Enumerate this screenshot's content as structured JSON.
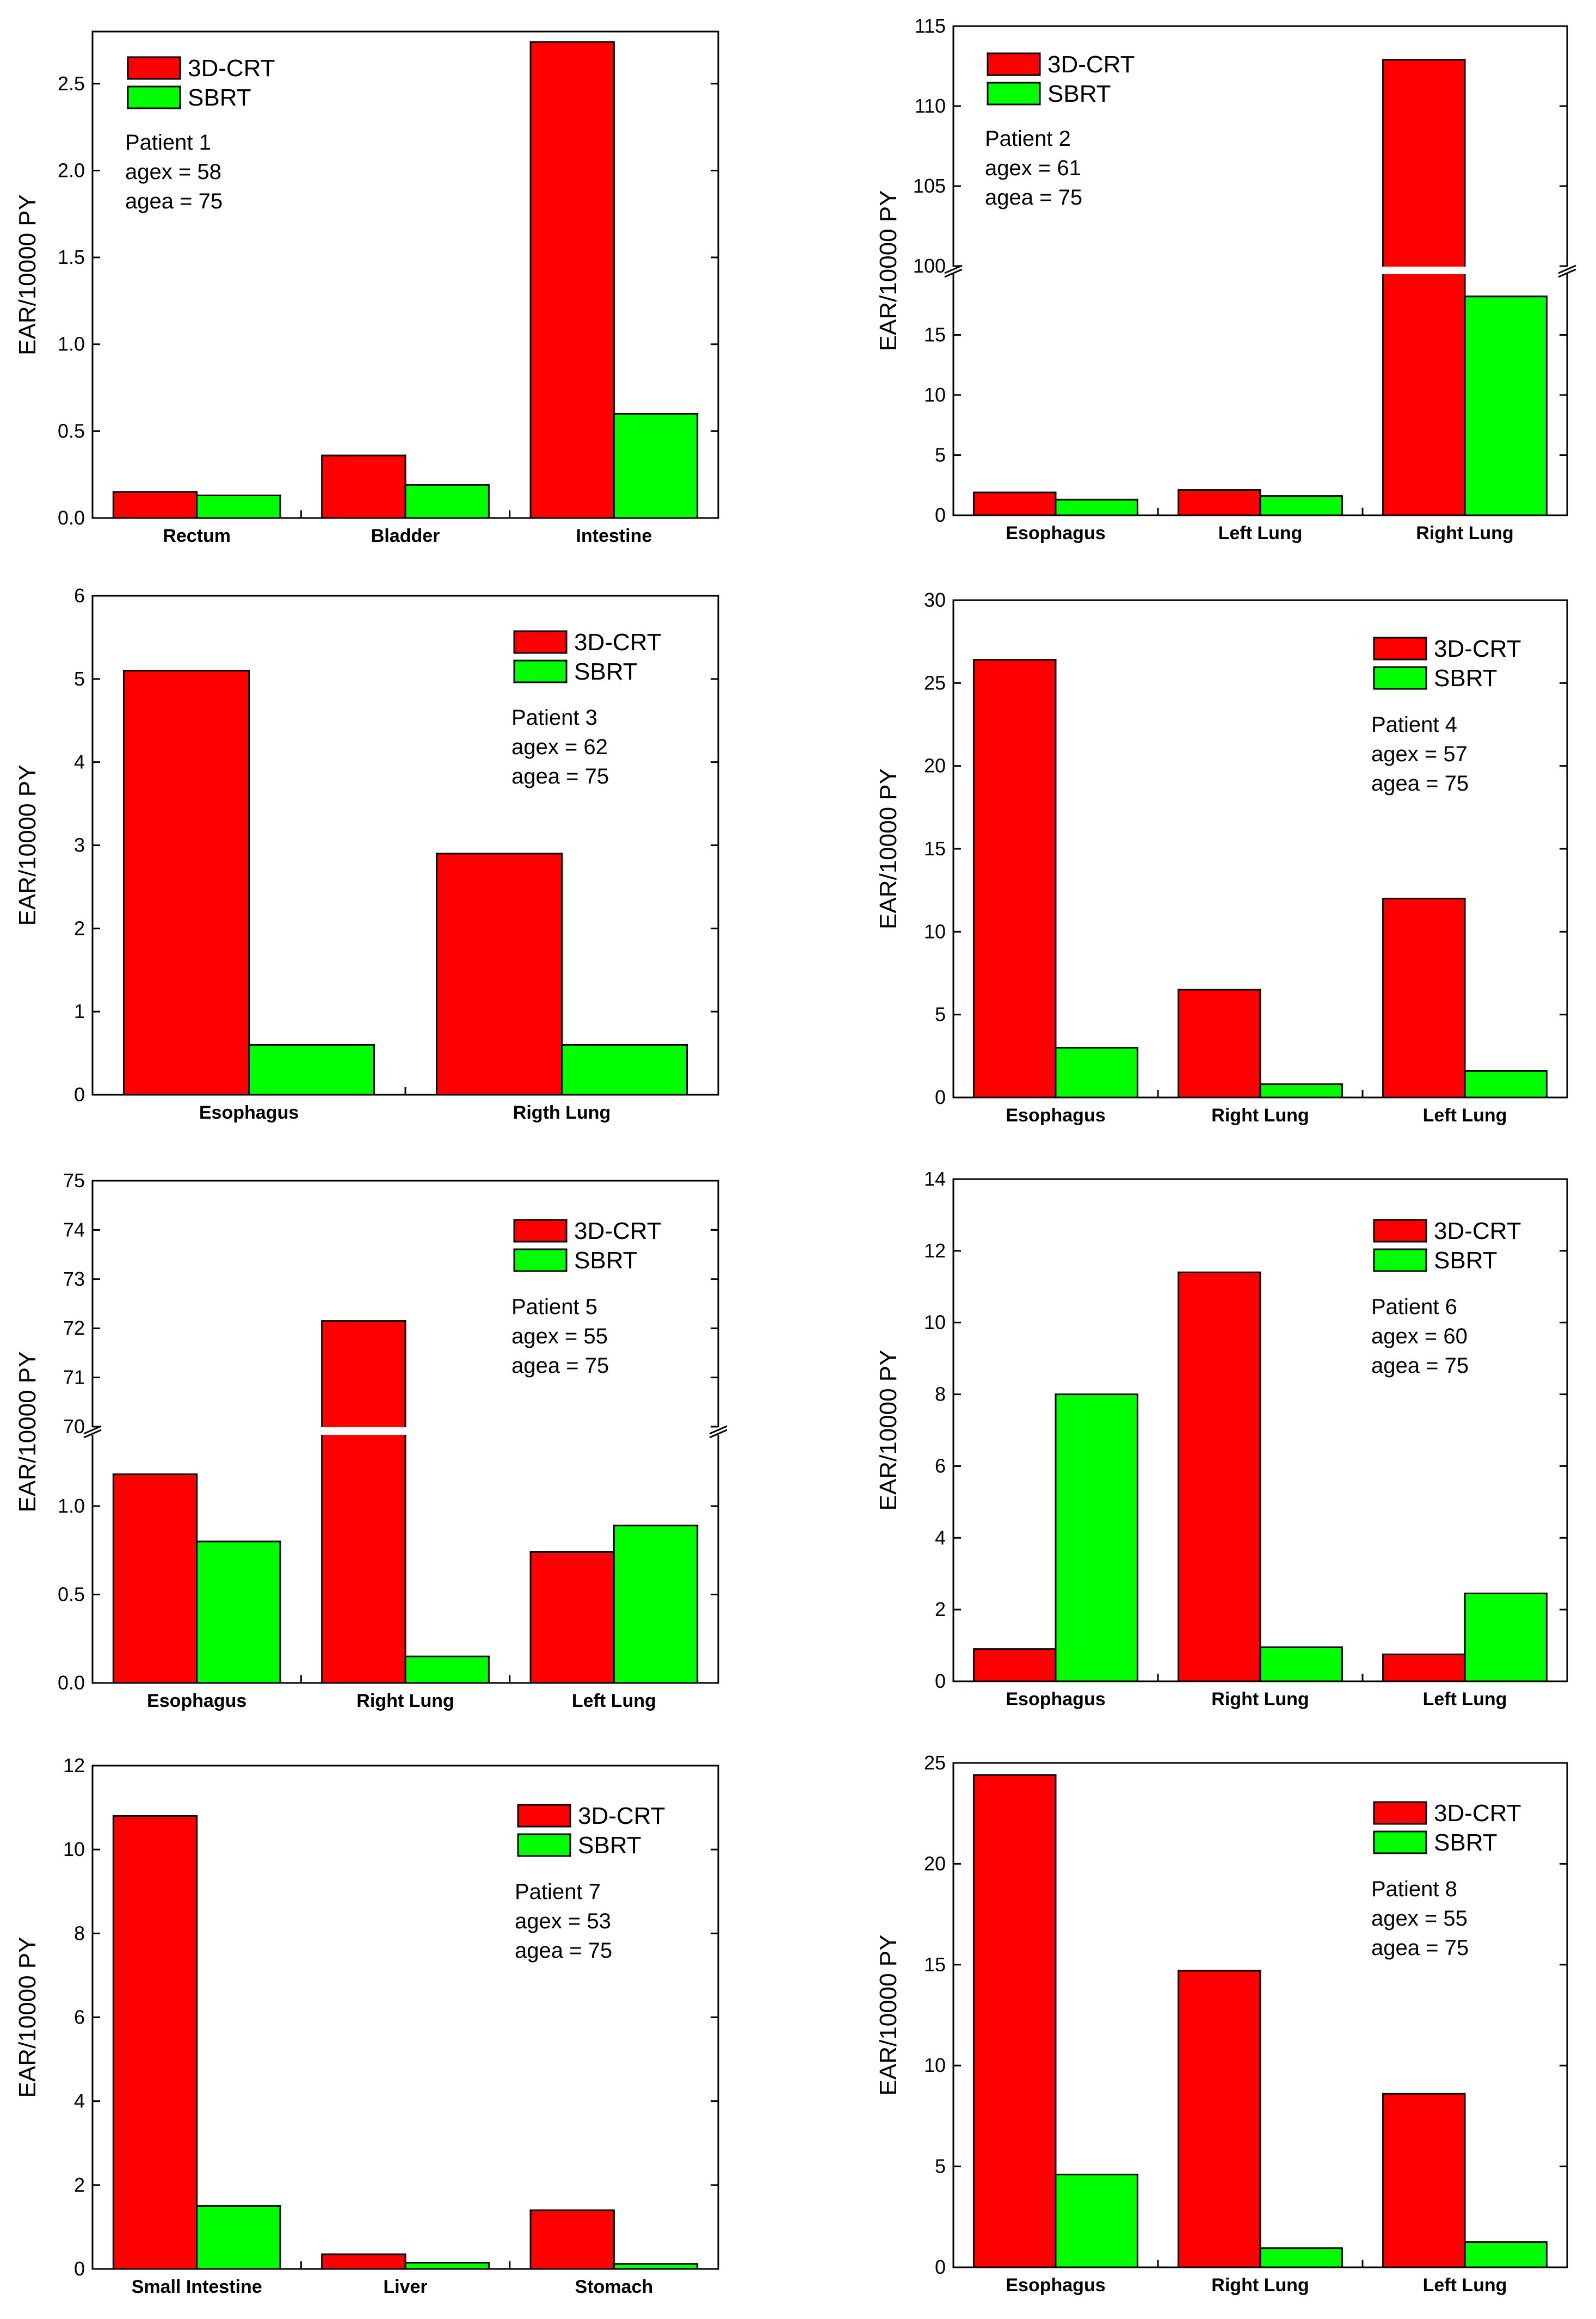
{
  "colors": {
    "crt": "#ff0000",
    "sbrt": "#00ff00",
    "axis": "#000000"
  },
  "chart_data": [
    {
      "type": "bar",
      "title": "Patient 1",
      "ylabel": "EAR/10000 PY",
      "categories": [
        "Rectum",
        "Bladder",
        "Intestine"
      ],
      "series": [
        {
          "name": "3D-CRT",
          "values": [
            0.15,
            0.36,
            2.74
          ]
        },
        {
          "name": "SBRT",
          "values": [
            0.13,
            0.19,
            0.6
          ]
        }
      ],
      "ylim": [
        0,
        2.8
      ],
      "yticks": [
        "0.0",
        "0.5",
        "1.0",
        "1.5",
        "2.0",
        "2.5"
      ],
      "annotation": {
        "patient": "Patient 1",
        "agex": "agex = 58",
        "agea": "agea = 75"
      }
    },
    {
      "type": "bar",
      "title": "Patient 2",
      "ylabel": "EAR/10000 PY",
      "categories": [
        "Esophagus",
        "Left Lung",
        "Right Lung"
      ],
      "series": [
        {
          "name": "3D-CRT",
          "values": [
            1.9,
            2.1,
            112.9
          ]
        },
        {
          "name": "SBRT",
          "values": [
            1.3,
            1.6,
            18.2
          ]
        }
      ],
      "ylim": [
        0,
        115
      ],
      "axis_break": {
        "lower_range": [
          0,
          20
        ],
        "upper_range": [
          100,
          115
        ]
      },
      "yticks_lower": [
        "0",
        "5",
        "10",
        "15"
      ],
      "yticks_upper": [
        "100",
        "105",
        "110",
        "115"
      ],
      "annotation": {
        "patient": "Patient 2",
        "agex": "agex = 61",
        "agea": "agea = 75"
      }
    },
    {
      "type": "bar",
      "title": "Patient 3",
      "ylabel": "EAR/10000 PY",
      "categories": [
        "Esophagus",
        "Rigth Lung"
      ],
      "series": [
        {
          "name": "3D-CRT",
          "values": [
            5.1,
            2.9
          ]
        },
        {
          "name": "SBRT",
          "values": [
            0.6,
            0.6
          ]
        }
      ],
      "ylim": [
        0,
        6
      ],
      "yticks": [
        "0",
        "1",
        "2",
        "3",
        "4",
        "5",
        "6"
      ],
      "annotation": {
        "patient": "Patient 3",
        "agex": "agex = 62",
        "agea": "agea = 75"
      }
    },
    {
      "type": "bar",
      "title": "Patient 4",
      "ylabel": "EAR/10000 PY",
      "categories": [
        "Esophagus",
        "Right Lung",
        "Left Lung"
      ],
      "series": [
        {
          "name": "3D-CRT",
          "values": [
            26.4,
            6.5,
            12.0
          ]
        },
        {
          "name": "SBRT",
          "values": [
            3.0,
            0.8,
            1.6
          ]
        }
      ],
      "ylim": [
        0,
        30
      ],
      "yticks": [
        "0",
        "5",
        "10",
        "15",
        "20",
        "25",
        "30"
      ],
      "annotation": {
        "patient": "Patient 4",
        "agex": "agex = 57",
        "agea": "agea = 75"
      }
    },
    {
      "type": "bar",
      "title": "Patient 5",
      "ylabel": "EAR/10000 PY",
      "categories": [
        "Esophagus",
        "Right Lung",
        "Left Lung"
      ],
      "series": [
        {
          "name": "3D-CRT",
          "values": [
            1.18,
            72.15,
            0.74
          ]
        },
        {
          "name": "SBRT",
          "values": [
            0.8,
            0.15,
            0.89
          ]
        }
      ],
      "ylim": [
        0,
        75
      ],
      "axis_break": {
        "lower_range": [
          0,
          1.4
        ],
        "upper_range": [
          70,
          75
        ]
      },
      "yticks_lower": [
        "0.0",
        "0.5",
        "1.0"
      ],
      "yticks_upper": [
        "70",
        "71",
        "72",
        "73",
        "74",
        "75"
      ],
      "annotation": {
        "patient": "Patient 5",
        "agex": "agex = 55",
        "agea": "agea = 75"
      }
    },
    {
      "type": "bar",
      "title": "Patient 6",
      "ylabel": "EAR/10000 PY",
      "categories": [
        "Esophagus",
        "Right Lung",
        "Left Lung"
      ],
      "series": [
        {
          "name": "3D-CRT",
          "values": [
            0.9,
            11.4,
            0.75
          ]
        },
        {
          "name": "SBRT",
          "values": [
            8.0,
            0.95,
            2.45
          ]
        }
      ],
      "ylim": [
        0,
        14
      ],
      "yticks": [
        "0",
        "2",
        "4",
        "6",
        "8",
        "10",
        "12",
        "14"
      ],
      "annotation": {
        "patient": "Patient 6",
        "agex": "agex = 60",
        "agea": "agea = 75"
      }
    },
    {
      "type": "bar",
      "title": "Patient 7",
      "ylabel": "EAR/10000 PY",
      "categories": [
        "Small Intestine",
        "Liver",
        "Stomach"
      ],
      "series": [
        {
          "name": "3D-CRT",
          "values": [
            10.8,
            0.35,
            1.4
          ]
        },
        {
          "name": "SBRT",
          "values": [
            1.5,
            0.15,
            0.12
          ]
        }
      ],
      "ylim": [
        0,
        12
      ],
      "yticks": [
        "0",
        "2",
        "4",
        "6",
        "8",
        "10",
        "12"
      ],
      "annotation": {
        "patient": "Patient 7",
        "agex": "agex = 53",
        "agea": "agea = 75"
      }
    },
    {
      "type": "bar",
      "title": "Patient 8",
      "ylabel": "EAR/10000 PY",
      "categories": [
        "Esophagus",
        "Right Lung",
        "Left Lung"
      ],
      "series": [
        {
          "name": "3D-CRT",
          "values": [
            24.4,
            14.7,
            8.6
          ]
        },
        {
          "name": "SBRT",
          "values": [
            4.6,
            0.95,
            1.25
          ]
        }
      ],
      "ylim": [
        0,
        25
      ],
      "yticks": [
        "0",
        "5",
        "10",
        "15",
        "20",
        "25"
      ],
      "annotation": {
        "patient": "Patient 8",
        "agex": "agex = 55",
        "agea": "agea = 75"
      }
    }
  ]
}
